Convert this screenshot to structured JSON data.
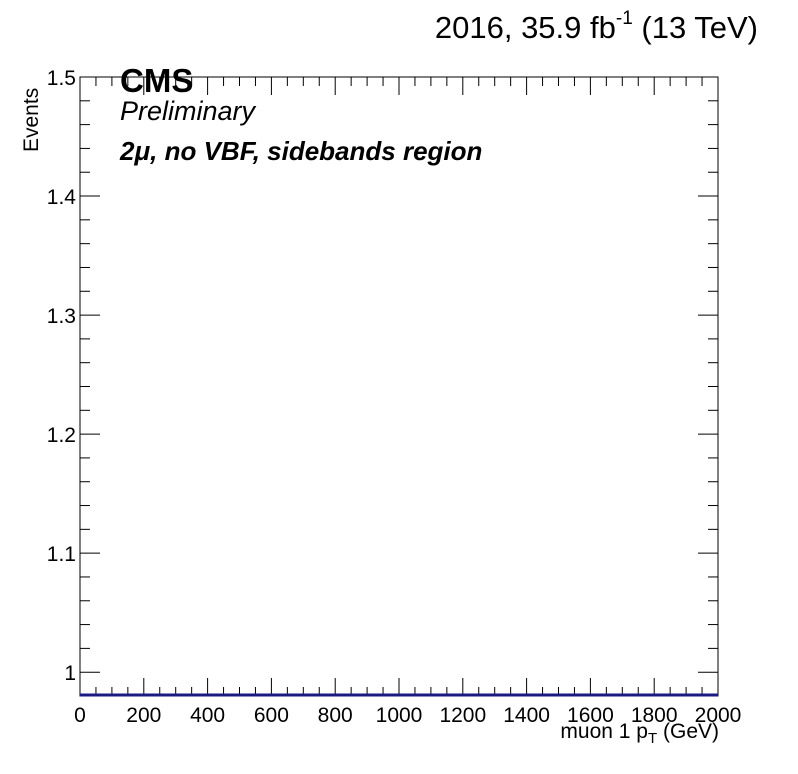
{
  "header": {
    "lumi_prefix": "2016, 35.9 fb",
    "lumi_exp": "-1",
    "lumi_suffix": " (13 TeV)"
  },
  "labels": {
    "experiment": "CMS",
    "status": "Preliminary",
    "region": "2μ, no VBF, sidebands region",
    "ylabel": "Events",
    "xlabel_main": "muon 1 p",
    "xlabel_sub": "T",
    "xlabel_unit": " (GeV)"
  },
  "chart_data": {
    "type": "line",
    "title": "",
    "xlabel": "muon 1 p_T (GeV)",
    "ylabel": "Events",
    "xlim": [
      0,
      2000
    ],
    "ylim": [
      0.98,
      1.5
    ],
    "x_ticks": [
      0,
      200,
      400,
      600,
      800,
      1000,
      1200,
      1400,
      1600,
      1800,
      2000
    ],
    "y_ticks": [
      1,
      1.1,
      1.2,
      1.3,
      1.4,
      1.5
    ],
    "y_tick_labels": [
      "1",
      "1.1",
      "1.2",
      "1.3",
      "1.4",
      "1.5"
    ],
    "grid": false,
    "line_color": "#1a1a80",
    "series": [
      {
        "x": [
          0,
          2000
        ],
        "values": [
          0.98,
          0.98
        ]
      }
    ]
  }
}
